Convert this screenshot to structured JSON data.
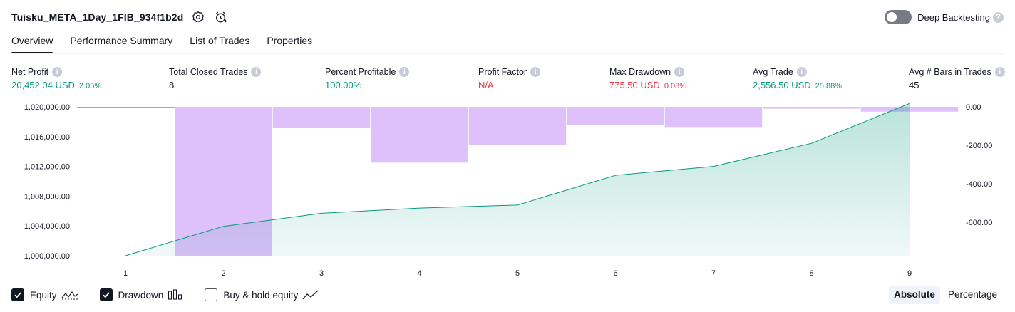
{
  "header": {
    "title": "Tuisku_META_1Day_1FIB_934f1b2d",
    "deep_backtesting_label": "Deep Backtesting",
    "deep_backtesting_on": false
  },
  "tabs": [
    {
      "label": "Overview",
      "active": true
    },
    {
      "label": "Performance Summary",
      "active": false
    },
    {
      "label": "List of Trades",
      "active": false
    },
    {
      "label": "Properties",
      "active": false
    }
  ],
  "metrics": [
    {
      "label": "Net Profit",
      "value": "20,452.04 USD",
      "sub": "2.05%",
      "color": "#089981"
    },
    {
      "label": "Total Closed Trades",
      "value": "8",
      "sub": "",
      "color": "#131722"
    },
    {
      "label": "Percent Profitable",
      "value": "100.00%",
      "sub": "",
      "color": "#089981"
    },
    {
      "label": "Profit Factor",
      "value": "N/A",
      "sub": "",
      "color": "#f23645"
    },
    {
      "label": "Max Drawdown",
      "value": "775.50 USD",
      "sub": "0.08%",
      "color": "#f23645"
    },
    {
      "label": "Avg Trade",
      "value": "2,556.50 USD",
      "sub": "25.88%",
      "color": "#089981"
    },
    {
      "label": "Avg # Bars in Trades",
      "value": "45",
      "sub": "",
      "color": "#131722"
    }
  ],
  "chart_data": {
    "type": "line",
    "x": [
      1,
      2,
      3,
      4,
      5,
      6,
      7,
      8,
      9
    ],
    "series": [
      {
        "values": [
          1000000.0,
          1003950.0,
          1005700.0,
          1006400.0,
          1006800.0,
          1010800.0,
          1012000.0,
          1015100.0,
          1020452.04
        ],
        "color": "#089981"
      },
      {
        "values": [
          0.0,
          -775.5,
          -110.0,
          -290.0,
          -200.0,
          -95.0,
          -105.0,
          -10.0,
          -25.0
        ],
        "color": "#c28cf8",
        "type": "bar"
      }
    ],
    "left_axis": {
      "ticks": [
        "1,000,000.00",
        "1,004,000.00",
        "1,008,000.00",
        "1,012,000.00",
        "1,016,000.00",
        "1,020,000.00"
      ],
      "min": 1000000,
      "max": 1020000
    },
    "right_axis": {
      "ticks": [
        "0.00",
        "-200.00",
        "-400.00",
        "-600.00"
      ],
      "min": -775.5,
      "max": 0
    },
    "x_ticks": [
      "1",
      "2",
      "3",
      "4",
      "5",
      "6",
      "7",
      "8",
      "9"
    ]
  },
  "legend": {
    "items": [
      {
        "label": "Equity",
        "checked": true,
        "icon": "equity-line-icon"
      },
      {
        "label": "Drawdown",
        "checked": true,
        "icon": "drawdown-bars-icon"
      },
      {
        "label": "Buy & hold equity",
        "checked": false,
        "icon": "buy-hold-line-icon"
      }
    ],
    "modes": [
      {
        "label": "Absolute",
        "active": true
      },
      {
        "label": "Percentage",
        "active": false
      }
    ]
  }
}
